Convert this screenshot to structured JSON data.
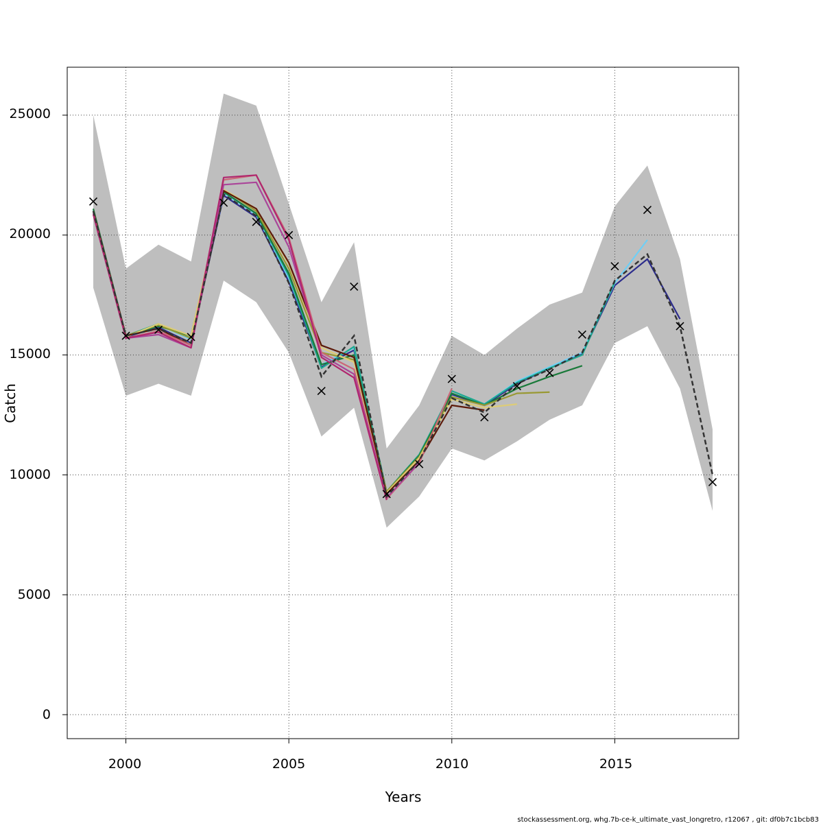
{
  "chart_data": {
    "type": "line",
    "xlabel": "Years",
    "ylabel": "Catch",
    "xlim": [
      1998.2,
      2018.8
    ],
    "ylim": [
      -1000,
      27000
    ],
    "x_ticks": [
      2000,
      2005,
      2010,
      2015
    ],
    "y_ticks": [
      0,
      5000,
      10000,
      15000,
      20000,
      25000
    ],
    "grid": true,
    "grid_style": "dotted",
    "band_color": "#bebebe",
    "band": {
      "x": [
        1999,
        2000,
        2001,
        2002,
        2003,
        2004,
        2005,
        2006,
        2007,
        2008,
        2009,
        2010,
        2011,
        2012,
        2013,
        2014,
        2015,
        2016,
        2017,
        2018
      ],
      "upper": [
        25000,
        18600,
        19600,
        18900,
        25900,
        25400,
        21300,
        17200,
        19700,
        11100,
        12900,
        15800,
        15000,
        16100,
        17100,
        17600,
        21200,
        22900,
        19000,
        11900
      ],
      "lower": [
        17800,
        13300,
        13800,
        13300,
        18100,
        17200,
        15100,
        11600,
        12800,
        7800,
        9100,
        11100,
        10600,
        11400,
        12300,
        12900,
        15500,
        16200,
        13600,
        8500
      ]
    },
    "observed": {
      "marker": "x",
      "x": [
        1999,
        2000,
        2001,
        2002,
        2003,
        2004,
        2005,
        2006,
        2007,
        2008,
        2009,
        2010,
        2011,
        2012,
        2013,
        2014,
        2015,
        2016,
        2017,
        2018
      ],
      "y": [
        21400,
        15800,
        16050,
        15750,
        21350,
        20550,
        20000,
        13500,
        17850,
        9200,
        10450,
        14000,
        12400,
        13700,
        14250,
        15850,
        18700,
        21050,
        16200,
        9700
      ]
    },
    "reference_color": "#333333",
    "reference_line": {
      "x": [
        1999,
        2000,
        2001,
        2002,
        2003,
        2004,
        2005,
        2006,
        2007,
        2008,
        2009,
        2010,
        2011,
        2012,
        2013,
        2014,
        2015,
        2016,
        2017,
        2018
      ],
      "y": [
        21000,
        15800,
        16100,
        15500,
        21700,
        20800,
        18000,
        14100,
        15800,
        9100,
        10600,
        13200,
        12600,
        13800,
        14400,
        15100,
        18100,
        19200,
        16200,
        10000
      ]
    },
    "series": [
      {
        "color": "#2b2b8c",
        "x": [
          1999,
          2000,
          2001,
          2002,
          2003,
          2004,
          2005,
          2006,
          2007,
          2008,
          2009,
          2010,
          2011,
          2012,
          2013,
          2014,
          2015,
          2016,
          2017
        ],
        "y": [
          21000,
          15750,
          16150,
          15500,
          21650,
          20750,
          18050,
          14500,
          15200,
          9200,
          10750,
          13350,
          12900,
          13800,
          14450,
          15050,
          17900,
          19000,
          16500
        ]
      },
      {
        "color": "#6ecff6",
        "x": [
          1999,
          2000,
          2001,
          2002,
          2003,
          2004,
          2005,
          2006,
          2007,
          2008,
          2009,
          2010,
          2011,
          2012,
          2013,
          2014,
          2015,
          2016
        ],
        "y": [
          21050,
          15800,
          16250,
          15650,
          21750,
          20850,
          18200,
          14600,
          15300,
          9250,
          10800,
          13400,
          12950,
          13900,
          14500,
          15100,
          18000,
          19800
        ]
      },
      {
        "color": "#1fa88f",
        "x": [
          1999,
          2000,
          2001,
          2002,
          2003,
          2004,
          2005,
          2006,
          2007,
          2008,
          2009,
          2010,
          2011,
          2012,
          2013,
          2014,
          2015
        ],
        "y": [
          21000,
          15800,
          16300,
          15700,
          21800,
          20900,
          18300,
          14450,
          15350,
          9300,
          10850,
          13500,
          12950,
          13850,
          14450,
          15000,
          18050
        ]
      },
      {
        "color": "#1a7a3a",
        "x": [
          1999,
          2000,
          2001,
          2002,
          2003,
          2004,
          2005,
          2006,
          2007,
          2008,
          2009,
          2010,
          2011,
          2012,
          2013,
          2014
        ],
        "y": [
          21100,
          15800,
          16200,
          15800,
          21800,
          20900,
          18400,
          14600,
          15000,
          9300,
          10800,
          13400,
          12900,
          13600,
          14100,
          14550
        ]
      },
      {
        "color": "#999933",
        "x": [
          1999,
          2000,
          2001,
          2002,
          2003,
          2004,
          2005,
          2006,
          2007,
          2008,
          2009,
          2010,
          2011,
          2012,
          2013
        ],
        "y": [
          21000,
          15800,
          16250,
          15700,
          21900,
          21000,
          18600,
          15100,
          14800,
          9300,
          10750,
          13250,
          12900,
          13400,
          13450
        ]
      },
      {
        "color": "#ddcc77",
        "x": [
          1999,
          2000,
          2001,
          2002,
          2003,
          2004,
          2005,
          2006,
          2007,
          2008,
          2009,
          2010,
          2011,
          2012
        ],
        "y": [
          21000,
          15750,
          16300,
          15800,
          21900,
          21100,
          18800,
          15300,
          14700,
          9250,
          10700,
          13150,
          12800,
          12950
        ]
      },
      {
        "color": "#5c1a0a",
        "x": [
          1999,
          2000,
          2001,
          2002,
          2003,
          2004,
          2005,
          2006,
          2007,
          2008,
          2009,
          2010,
          2011
        ],
        "y": [
          21000,
          15800,
          16100,
          15400,
          21850,
          21100,
          18850,
          15400,
          14900,
          9200,
          10600,
          12900,
          12700
        ]
      },
      {
        "color": "#cc6677",
        "x": [
          1999,
          2000,
          2001,
          2002,
          2003,
          2004,
          2005,
          2006,
          2007,
          2008,
          2009,
          2010
        ],
        "y": [
          20900,
          15700,
          16000,
          15400,
          22300,
          22500,
          19900,
          15100,
          14400,
          9000,
          10500,
          13600
        ]
      },
      {
        "color": "#aa4499",
        "x": [
          1999,
          2000,
          2001,
          2002,
          2003,
          2004,
          2005,
          2006,
          2007,
          2008,
          2009
        ],
        "y": [
          20900,
          15700,
          15850,
          15300,
          22100,
          22200,
          19500,
          15000,
          14200,
          9050,
          10500
        ]
      },
      {
        "color": "#b0276e",
        "x": [
          1999,
          2000,
          2001,
          2002,
          2003,
          2004,
          2005,
          2006,
          2007,
          2008
        ],
        "y": [
          20850,
          15700,
          15950,
          15300,
          22400,
          22500,
          19800,
          14900,
          14050,
          8950
        ]
      }
    ]
  },
  "axes": {
    "x_tick_labels": [
      "2000",
      "2005",
      "2010",
      "2015"
    ],
    "y_tick_labels": [
      "0",
      "5000",
      "10000",
      "15000",
      "20000",
      "25000"
    ],
    "xlabel": "Years",
    "ylabel": "Catch"
  },
  "footer": "stockassessment.org, whg.7b-ce-k_ultimate_vast_longretro, r12067 , git: df0b7c1bcb83"
}
